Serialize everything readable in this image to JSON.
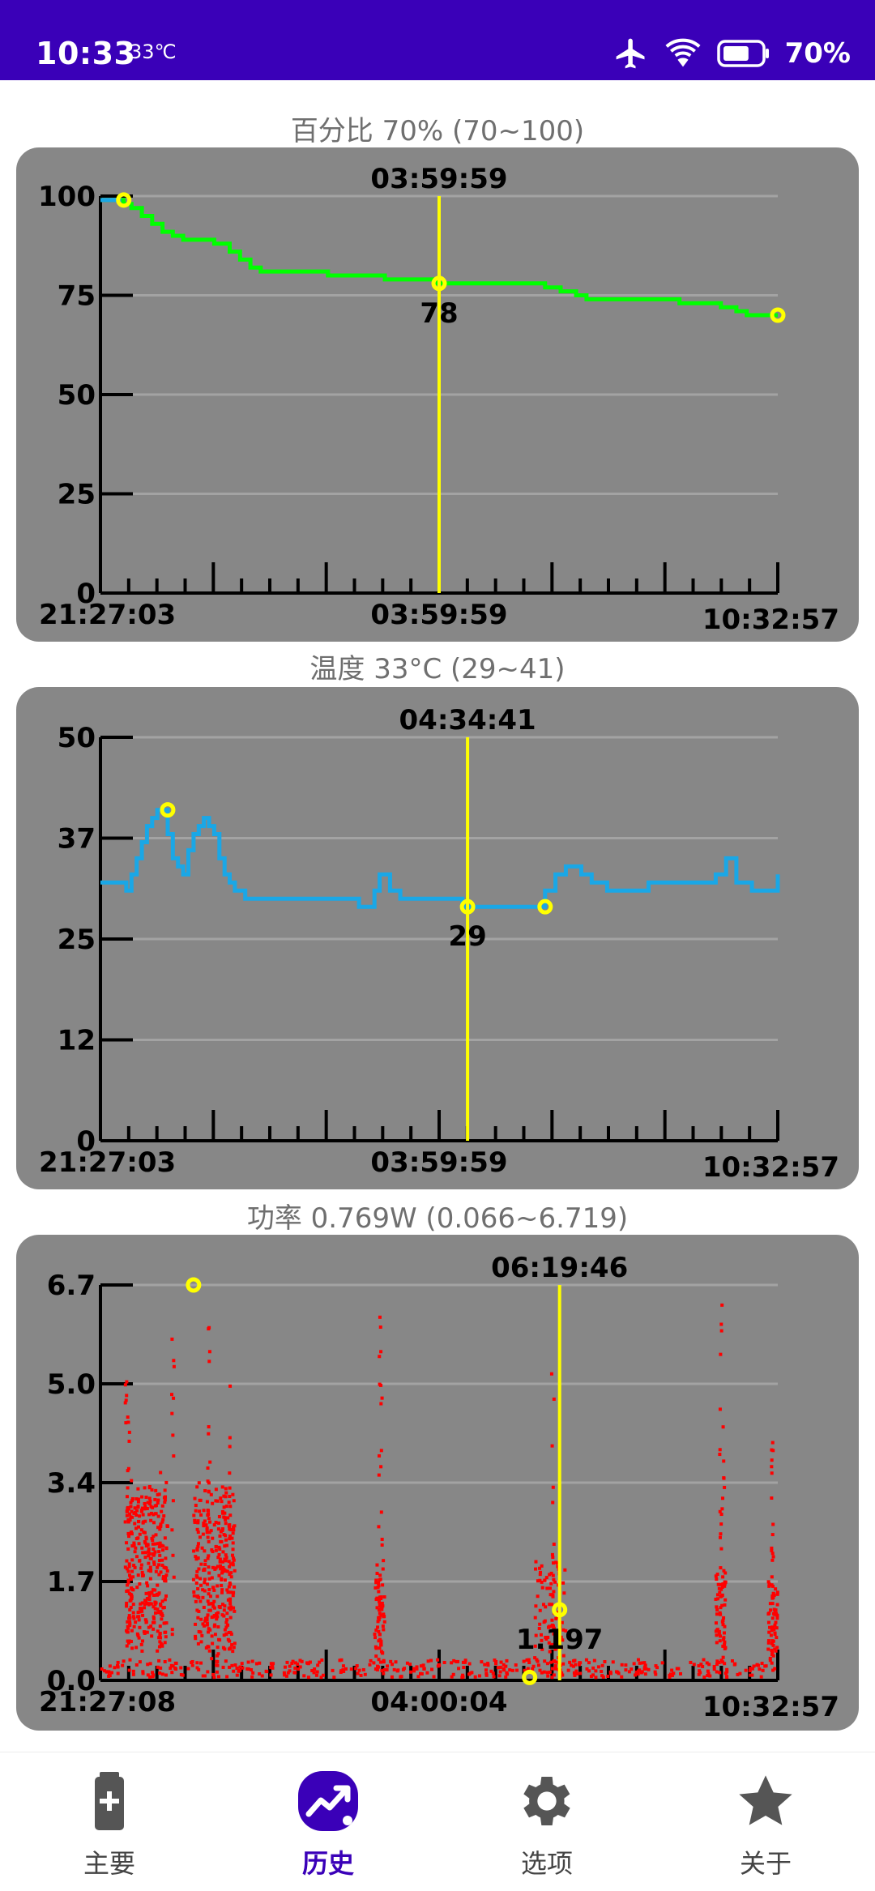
{
  "status": {
    "time": "10:33",
    "temp": "33℃",
    "battery_text": "70%",
    "battery_level": 0.7
  },
  "sections": [
    {
      "title": "百分比 70% (70~100)"
    },
    {
      "title": "温度 33°C (29~41)"
    },
    {
      "title": "功率 0.769W (0.066~6.719)"
    }
  ],
  "nav": [
    {
      "label": "主要",
      "icon": "battery-plus-icon"
    },
    {
      "label": "历史",
      "icon": "trending-chart-icon",
      "active": true
    },
    {
      "label": "选项",
      "icon": "gear-icon"
    },
    {
      "label": "关于",
      "icon": "star-icon"
    }
  ],
  "colors": {
    "accent": "#3a00b8",
    "card": "#878787",
    "cursor": "#ffff00",
    "percent": "#00ff00",
    "temp": "#1aa7e6",
    "power": "#ff0000"
  },
  "chart_data": [
    {
      "type": "line",
      "series_color": "#00ff00",
      "ylim": [
        0,
        100
      ],
      "y_ticks": [
        "0",
        "25",
        "50",
        "75",
        "100"
      ],
      "x_tick_labels": [
        "21:27:03",
        "03:59:59",
        "10:32:57"
      ],
      "x_range_hours": [
        0,
        13.1
      ],
      "cursor": {
        "time_label": "03:59:59",
        "x": 6.55,
        "value_label": "78",
        "value": 78
      },
      "x": [
        0,
        0.4,
        0.45,
        0.6,
        0.8,
        1.0,
        1.2,
        1.4,
        1.6,
        1.8,
        2.2,
        2.5,
        2.7,
        2.9,
        3.1,
        3.3,
        3.5,
        4.2,
        4.4,
        5.3,
        5.5,
        6.3,
        6.5,
        7.0,
        8.4,
        8.6,
        8.9,
        9.2,
        9.4,
        10.6,
        11.2,
        11.4,
        12.0,
        12.3,
        12.5,
        13.1
      ],
      "y": [
        99,
        99,
        98,
        97,
        95,
        93,
        91,
        90,
        89,
        89,
        88,
        86,
        84,
        82,
        81,
        81,
        81,
        81,
        80,
        80,
        79,
        79,
        78,
        78,
        78,
        77,
        76,
        75,
        74,
        74,
        73,
        73,
        72,
        71,
        70,
        70
      ],
      "markers": [
        {
          "x": 0.45,
          "y": 99
        },
        {
          "x": 13.1,
          "y": 70
        }
      ]
    },
    {
      "type": "line",
      "series_color": "#1aa7e6",
      "ylim": [
        0,
        50
      ],
      "y_ticks": [
        "0",
        "12",
        "25",
        "37",
        "50"
      ],
      "x_tick_labels": [
        "21:27:03",
        "03:59:59",
        "10:32:57"
      ],
      "x_range_hours": [
        0,
        13.1
      ],
      "cursor": {
        "time_label": "04:34:41",
        "x": 7.1,
        "value_label": "29",
        "value": 29
      },
      "x": [
        0,
        0.4,
        0.5,
        0.6,
        0.7,
        0.8,
        0.9,
        1.0,
        1.1,
        1.2,
        1.3,
        1.4,
        1.5,
        1.6,
        1.7,
        1.8,
        1.9,
        2.0,
        2.1,
        2.2,
        2.3,
        2.4,
        2.5,
        2.6,
        2.7,
        2.8,
        2.9,
        3.0,
        3.1,
        3.3,
        3.5,
        4.0,
        5.0,
        5.3,
        5.4,
        5.6,
        5.8,
        6.0,
        6.2,
        7.0,
        7.5,
        8.4,
        8.6,
        8.8,
        9.0,
        9.3,
        9.5,
        9.8,
        10.0,
        10.6,
        11.0,
        11.5,
        11.9,
        12.1,
        12.3,
        12.6,
        13.0,
        13.1
      ],
      "y": [
        32,
        32,
        31,
        33,
        35,
        37,
        39,
        40,
        41,
        41,
        38,
        35,
        34,
        33,
        36,
        38,
        39,
        40,
        39,
        38,
        35,
        33,
        32,
        31,
        31,
        30,
        30,
        30,
        30,
        30,
        30,
        30,
        29,
        31,
        33,
        31,
        30,
        30,
        30,
        29,
        29,
        29,
        31,
        33,
        34,
        33,
        32,
        31,
        31,
        32,
        32,
        32,
        33,
        35,
        32,
        31,
        31,
        33
      ],
      "markers": [
        {
          "x": 1.3,
          "y": 41
        },
        {
          "x": 8.6,
          "y": 29
        }
      ]
    },
    {
      "type": "scatter",
      "series_color": "#ff0000",
      "ylim": [
        0,
        6.7
      ],
      "y_ticks": [
        "0.0",
        "1.7",
        "3.4",
        "5.0",
        "6.7"
      ],
      "x_tick_labels": [
        "21:27:08",
        "04:00:04",
        "10:32:57"
      ],
      "x_range_hours": [
        0,
        13.1
      ],
      "cursor": {
        "time_label": "06:19:46",
        "x": 8.88,
        "value_label": "1.197",
        "value": 1.197
      },
      "bursts": [
        {
          "x0": 0.5,
          "x1": 1.3,
          "lo": 0.3,
          "hi": 3.6,
          "n": 340
        },
        {
          "x0": 1.8,
          "x1": 2.6,
          "lo": 0.3,
          "hi": 3.4,
          "n": 300
        },
        {
          "x0": 5.3,
          "x1": 5.5,
          "lo": 0.2,
          "hi": 2.0,
          "n": 60
        },
        {
          "x0": 8.4,
          "x1": 9.0,
          "lo": 0.2,
          "hi": 2.2,
          "n": 90
        },
        {
          "x0": 11.9,
          "x1": 12.1,
          "lo": 0.2,
          "hi": 2.0,
          "n": 50
        },
        {
          "x0": 12.9,
          "x1": 13.1,
          "lo": 0.2,
          "hi": 1.8,
          "n": 50
        }
      ],
      "spikes": [
        [
          0.5,
          5.2
        ],
        [
          0.55,
          5.0
        ],
        [
          1.4,
          5.8
        ],
        [
          2.1,
          6.1
        ],
        [
          2.5,
          5.5
        ],
        [
          5.4,
          6.6
        ],
        [
          5.45,
          5.0
        ],
        [
          8.75,
          5.6
        ],
        [
          12.0,
          6.5
        ],
        [
          12.05,
          4.5
        ],
        [
          13.0,
          4.9
        ],
        [
          13.0,
          4.0
        ]
      ],
      "baseline": {
        "lo": 0.05,
        "hi": 0.35
      },
      "markers": [
        {
          "x": 1.8,
          "y": 6.7
        },
        {
          "x": 8.3,
          "y": 0.05
        }
      ]
    }
  ]
}
